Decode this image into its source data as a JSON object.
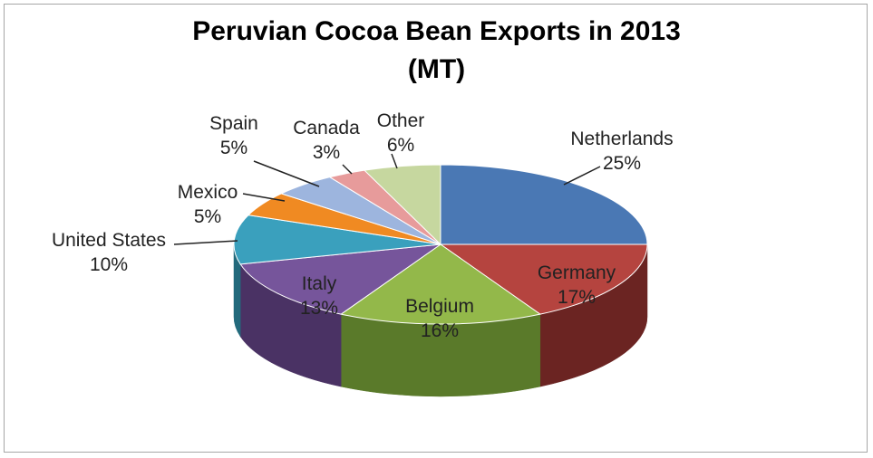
{
  "chart_data": {
    "type": "pie",
    "title_lines": [
      "Peruvian Cocoa Bean Exports in 2013",
      "(MT)"
    ],
    "slices": [
      {
        "name": "Netherlands",
        "value": 25,
        "label": "25%",
        "color": "#4a78b4",
        "side": "#2e4f7c"
      },
      {
        "name": "Germany",
        "value": 17,
        "label": "17%",
        "color": "#b5443f",
        "side": "#6b2422"
      },
      {
        "name": "Belgium",
        "value": 16,
        "label": "16%",
        "color": "#93b84a",
        "side": "#5a7a2a"
      },
      {
        "name": "Italy",
        "value": 13,
        "label": "13%",
        "color": "#76559b",
        "side": "#4a3264"
      },
      {
        "name": "United States",
        "value": 10,
        "label": "10%",
        "color": "#3aa0bd",
        "side": "#236a7c"
      },
      {
        "name": "Mexico",
        "value": 5,
        "label": "5%",
        "color": "#f08a22",
        "side": "#a55a12"
      },
      {
        "name": "Spain",
        "value": 5,
        "label": "5%",
        "color": "#9db5de",
        "side": "#6a82a8"
      },
      {
        "name": "Canada",
        "value": 3,
        "label": "3%",
        "color": "#e79b9b",
        "side": "#a86a6a"
      },
      {
        "name": "Other",
        "value": 6,
        "label": "6%",
        "color": "#c6d79f",
        "side": "#8fa067"
      }
    ]
  }
}
